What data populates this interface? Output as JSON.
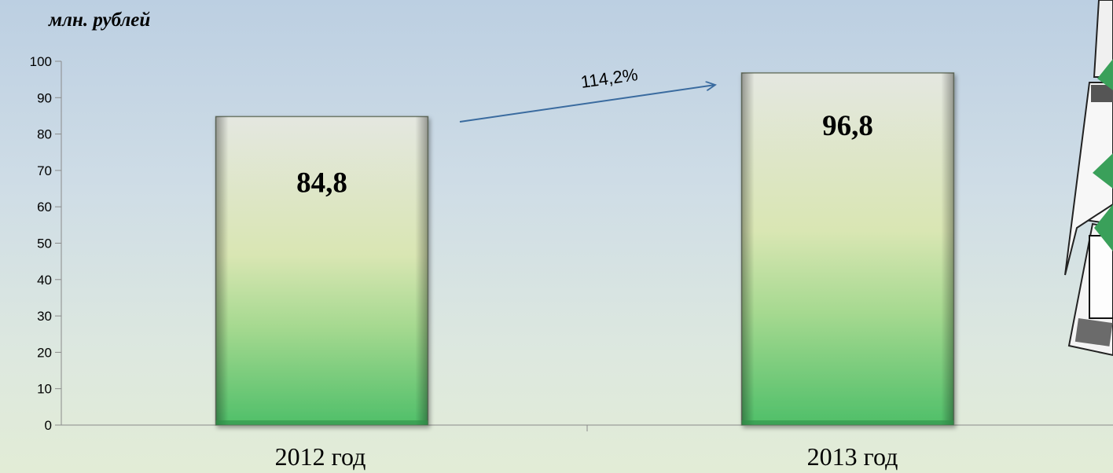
{
  "unit_label": "млн. рублей",
  "growth_label": "114,2%",
  "chart_data": {
    "type": "bar",
    "categories": [
      "2012 год",
      "2013 год"
    ],
    "values": [
      84.8,
      96.8
    ],
    "value_labels": [
      "84,8",
      "96,8"
    ],
    "ylim": [
      0,
      100
    ],
    "yticks": [
      0,
      10,
      20,
      30,
      40,
      50,
      60,
      70,
      80,
      90,
      100
    ],
    "grid": false,
    "xlabel": "",
    "ylabel": "",
    "bar_gradient": [
      "#e4e7e0",
      "#d9e6b3",
      "#a6d990",
      "#4fbf69"
    ],
    "arrow_color": "#3a6b9f"
  },
  "decoration": {
    "icon": "documents-stack-icon"
  }
}
